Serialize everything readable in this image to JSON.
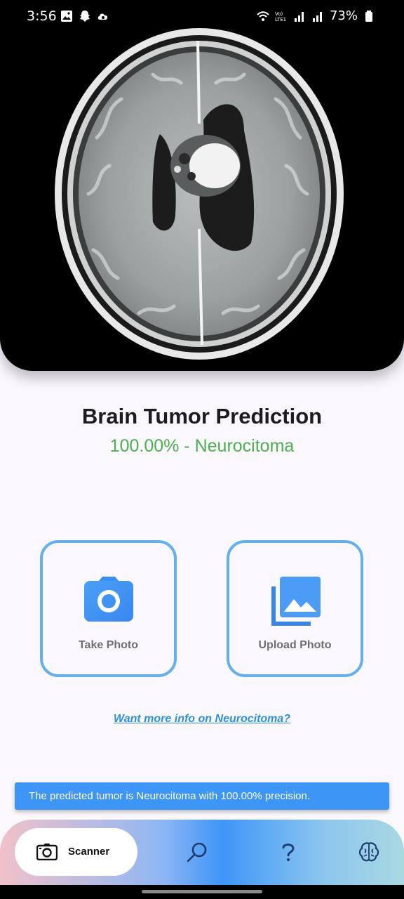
{
  "status_bar": {
    "time": "3:56",
    "battery": "73%",
    "left_icons": [
      "gallery-icon",
      "snapchat-icon",
      "cloud-icon"
    ],
    "right_icons": [
      "wifi-icon",
      "volte-icon",
      "signal-icon",
      "signal-icon",
      "battery-icon"
    ]
  },
  "hero": {
    "image": "brain-mri-scan"
  },
  "prediction": {
    "title": "Brain Tumor Prediction",
    "result": "100.00% - Neurocitoma",
    "result_color": "#4caf50"
  },
  "actions": {
    "take_photo": {
      "label": "Take Photo",
      "icon": "camera-icon"
    },
    "upload_photo": {
      "label": "Upload Photo",
      "icon": "photo-library-icon"
    }
  },
  "info_link": "Want more info on Neurocitoma?",
  "snackbar": "The predicted tumor is Neurocitoma with 100.00% precision.",
  "bottom_nav": {
    "active": {
      "label": "Scanner",
      "icon": "scanner-camera-icon"
    },
    "items": [
      {
        "icon": "search-icon"
      },
      {
        "icon": "help-icon"
      },
      {
        "icon": "brain-icon"
      }
    ]
  },
  "colors": {
    "accent_blue": "#3d96f5",
    "card_border": "#64b0ec",
    "link": "#2f8fd8"
  }
}
